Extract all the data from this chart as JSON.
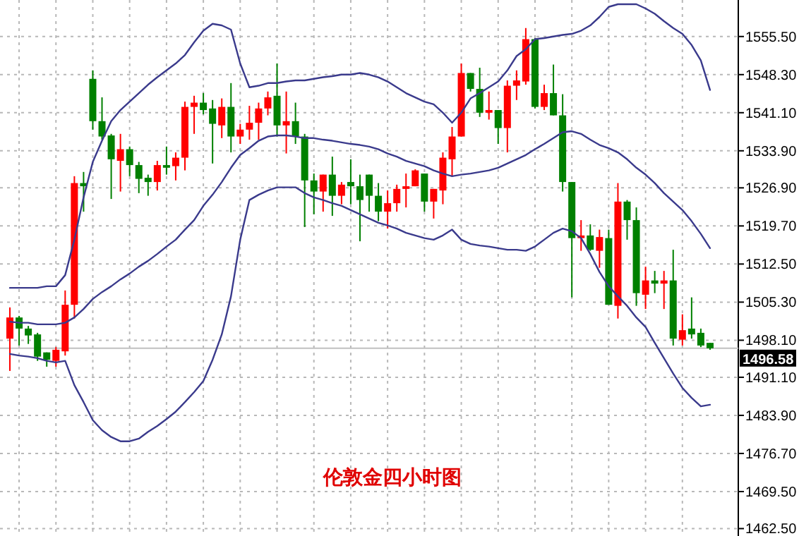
{
  "chart_data": {
    "type": "candlestick",
    "title": "伦敦金四小时图",
    "categories": [
      null,
      null,
      null,
      null,
      null,
      null,
      null,
      null,
      null,
      null,
      null,
      null,
      null,
      null,
      null,
      null,
      null,
      null,
      null,
      null,
      null,
      null,
      null,
      null,
      null,
      null,
      null,
      null,
      null,
      null,
      null,
      null,
      null,
      null,
      null,
      null,
      null,
      null,
      null,
      null,
      null,
      null,
      null,
      null,
      null,
      null,
      null,
      null,
      null,
      null,
      null,
      null,
      null,
      null,
      null,
      null,
      null,
      null,
      null,
      null,
      null,
      null,
      null,
      null,
      null,
      null,
      null,
      null,
      null,
      null,
      null,
      null,
      null,
      null,
      null,
      null,
      null
    ],
    "ohlc": [
      [
        1498.4,
        1504.3,
        1492.3,
        1502.4
      ],
      [
        1502.4,
        1502.7,
        1497.1,
        1500.3
      ],
      [
        1500.3,
        1500.8,
        1497.4,
        1499.0
      ],
      [
        1499.2,
        1499.5,
        1494.2,
        1495.0
      ],
      [
        1495.8,
        1495.8,
        1493.1,
        1494.4
      ],
      [
        1494.2,
        1496.8,
        1493.1,
        1496.3
      ],
      [
        1496.0,
        1507.5,
        1495.2,
        1504.8
      ],
      [
        1504.8,
        1529.1,
        1502.2,
        1527.8
      ],
      [
        1527.8,
        1529.9,
        1522.4,
        1527.2
      ],
      [
        1547.5,
        1549.1,
        1537.9,
        1539.5
      ],
      [
        1539.5,
        1544.0,
        1536.0,
        1536.6
      ],
      [
        1536.8,
        1537.1,
        1524.8,
        1532.3
      ],
      [
        1532.0,
        1537.1,
        1526.2,
        1534.2
      ],
      [
        1534.2,
        1534.7,
        1529.1,
        1531.2
      ],
      [
        1531.2,
        1531.8,
        1525.9,
        1528.6
      ],
      [
        1528.8,
        1529.4,
        1525.4,
        1528.0
      ],
      [
        1528.0,
        1532.0,
        1526.4,
        1531.2
      ],
      [
        1531.2,
        1534.7,
        1529.4,
        1530.7
      ],
      [
        1531.0,
        1533.6,
        1528.3,
        1532.6
      ],
      [
        1532.6,
        1543.2,
        1530.2,
        1542.2
      ],
      [
        1542.2,
        1544.3,
        1537.1,
        1543.0
      ],
      [
        1543.0,
        1544.8,
        1540.8,
        1541.6
      ],
      [
        1541.9,
        1543.5,
        1531.5,
        1539.0
      ],
      [
        1538.7,
        1543.8,
        1536.3,
        1542.2
      ],
      [
        1542.2,
        1546.7,
        1533.6,
        1536.6
      ],
      [
        1536.6,
        1539.0,
        1535.2,
        1537.9
      ],
      [
        1537.9,
        1542.4,
        1536.0,
        1539.2
      ],
      [
        1539.2,
        1543.0,
        1536.0,
        1541.9
      ],
      [
        1541.9,
        1545.1,
        1540.6,
        1544.0
      ],
      [
        1544.3,
        1550.4,
        1536.6,
        1538.7
      ],
      [
        1538.7,
        1545.1,
        1533.4,
        1539.5
      ],
      [
        1539.5,
        1543.0,
        1535.2,
        1536.6
      ],
      [
        1536.6,
        1537.1,
        1519.5,
        1528.3
      ],
      [
        1528.3,
        1529.6,
        1521.9,
        1526.2
      ],
      [
        1526.2,
        1529.4,
        1522.4,
        1529.4
      ],
      [
        1529.4,
        1532.8,
        1521.6,
        1525.4
      ],
      [
        1525.4,
        1528.0,
        1523.8,
        1527.5
      ],
      [
        1528.0,
        1532.3,
        1523.8,
        1527.2
      ],
      [
        1527.2,
        1529.4,
        1516.8,
        1524.6
      ],
      [
        1529.4,
        1529.4,
        1522.4,
        1525.4
      ],
      [
        1525.4,
        1527.8,
        1520.6,
        1522.4
      ],
      [
        1522.4,
        1526.4,
        1519.2,
        1524.0
      ],
      [
        1524.0,
        1527.5,
        1522.4,
        1526.7
      ],
      [
        1526.7,
        1529.6,
        1523.2,
        1527.2
      ],
      [
        1527.2,
        1530.4,
        1527.2,
        1530.2
      ],
      [
        1529.6,
        1529.6,
        1522.4,
        1524.3
      ],
      [
        1524.3,
        1526.7,
        1521.1,
        1526.7
      ],
      [
        1526.4,
        1533.6,
        1523.8,
        1532.6
      ],
      [
        1532.3,
        1538.4,
        1529.1,
        1536.6
      ],
      [
        1536.6,
        1550.4,
        1536.6,
        1548.6
      ],
      [
        1548.6,
        1548.6,
        1545.1,
        1545.6
      ],
      [
        1545.6,
        1549.6,
        1540.3,
        1541.1
      ],
      [
        1541.1,
        1545.1,
        1539.8,
        1541.6
      ],
      [
        1541.6,
        1541.6,
        1535.2,
        1538.2
      ],
      [
        1538.2,
        1547.2,
        1533.6,
        1546.2
      ],
      [
        1546.2,
        1549.1,
        1543.5,
        1547.2
      ],
      [
        1547.0,
        1557.1,
        1546.4,
        1555.0
      ],
      [
        1555.0,
        1555.2,
        1541.9,
        1542.2
      ],
      [
        1542.2,
        1546.4,
        1541.6,
        1544.8
      ],
      [
        1544.8,
        1550.2,
        1540.6,
        1540.6
      ],
      [
        1540.6,
        1544.6,
        1526.2,
        1528.0
      ],
      [
        1528.0,
        1528.0,
        1506.2,
        1517.4
      ],
      [
        1517.4,
        1520.8,
        1515.0,
        1517.9
      ],
      [
        1517.9,
        1520.0,
        1515.0,
        1515.2
      ],
      [
        1515.0,
        1519.0,
        1511.8,
        1517.6
      ],
      [
        1517.4,
        1519.0,
        1504.8,
        1504.8
      ],
      [
        1504.6,
        1527.8,
        1502.2,
        1524.3
      ],
      [
        1524.3,
        1524.6,
        1517.1,
        1520.8
      ],
      [
        1520.8,
        1523.2,
        1504.6,
        1507.0
      ],
      [
        1506.7,
        1512.0,
        1504.0,
        1509.4
      ],
      [
        1509.4,
        1511.2,
        1507.0,
        1508.8
      ],
      [
        1508.8,
        1511.2,
        1504.0,
        1509.4
      ],
      [
        1509.4,
        1515.2,
        1497.1,
        1498.4
      ],
      [
        1498.2,
        1503.0,
        1497.1,
        1500.0
      ],
      [
        1500.3,
        1506.2,
        1498.4,
        1499.2
      ],
      [
        1499.5,
        1500.3,
        1496.8,
        1497.1
      ],
      [
        1497.6,
        1497.6,
        1496.3,
        1496.58
      ]
    ],
    "colors": [
      "#ff0000",
      "#008000",
      "#008000",
      "#008000",
      "#008000",
      "#ff0000",
      "#ff0000",
      "#ff0000",
      "#008000",
      "#008000",
      "#008000",
      "#008000",
      "#ff0000",
      "#008000",
      "#008000",
      "#008000",
      "#ff0000",
      "#008000",
      "#ff0000",
      "#ff0000",
      "#ff0000",
      "#008000",
      "#008000",
      "#ff0000",
      "#008000",
      "#ff0000",
      "#ff0000",
      "#ff0000",
      "#ff0000",
      "#008000",
      "#ff0000",
      "#008000",
      "#008000",
      "#008000",
      "#ff0000",
      "#008000",
      "#ff0000",
      "#008000",
      "#008000",
      "#008000",
      "#008000",
      "#ff0000",
      "#ff0000",
      "#ff0000",
      "#ff0000",
      "#008000",
      "#ff0000",
      "#ff0000",
      "#ff0000",
      "#ff0000",
      "#008000",
      "#008000",
      "#ff0000",
      "#008000",
      "#ff0000",
      "#ff0000",
      "#ff0000",
      "#008000",
      "#ff0000",
      "#008000",
      "#008000",
      "#008000",
      "#ff0000",
      "#008000",
      "#ff0000",
      "#008000",
      "#ff0000",
      "#008000",
      "#008000",
      "#ff0000",
      "#008000",
      "#ff0000",
      "#008000",
      "#ff0000",
      "#008000",
      "#008000",
      "#008000"
    ],
    "series": [
      {
        "type": "line",
        "color": "#3a3a8c",
        "values": [
          1508.0,
          1508.0,
          1508.0,
          1508.0,
          1508.3,
          1508.3,
          1510.4,
          1517.1,
          1525.1,
          1531.8,
          1535.8,
          1539.5,
          1541.6,
          1543.2,
          1544.8,
          1546.4,
          1547.8,
          1549.1,
          1550.4,
          1552.0,
          1554.4,
          1556.6,
          1557.9,
          1557.6,
          1556.8,
          1550.4,
          1545.9,
          1546.2,
          1546.7,
          1546.7,
          1547.0,
          1547.2,
          1547.2,
          1547.5,
          1547.8,
          1548.0,
          1548.3,
          1548.3,
          1548.6,
          1548.3,
          1547.8,
          1547.0,
          1545.9,
          1544.8,
          1544.0,
          1543.2,
          1542.7,
          1541.1,
          1539.2,
          1541.1,
          1543.8,
          1544.8,
          1545.9,
          1547.0,
          1549.1,
          1551.8,
          1553.1,
          1555.0,
          1555.2,
          1555.5,
          1555.8,
          1556.0,
          1556.6,
          1557.6,
          1559.2,
          1561.1,
          1561.6,
          1561.6,
          1561.6,
          1560.8,
          1559.8,
          1558.4,
          1557.1,
          1556.0,
          1553.9,
          1551.0,
          1545.4
        ]
      },
      {
        "type": "line",
        "color": "#3a3a8c",
        "values": [
          1501.6,
          1501.4,
          1501.4,
          1501.1,
          1501.1,
          1501.1,
          1501.4,
          1502.4,
          1504.0,
          1505.9,
          1507.2,
          1508.3,
          1509.6,
          1510.7,
          1512.0,
          1513.1,
          1514.4,
          1515.8,
          1517.1,
          1519.0,
          1520.8,
          1523.5,
          1525.6,
          1528.0,
          1530.7,
          1533.1,
          1534.4,
          1535.8,
          1536.6,
          1536.8,
          1536.8,
          1536.6,
          1536.3,
          1536.3,
          1536.0,
          1535.8,
          1535.5,
          1535.2,
          1535.0,
          1534.7,
          1534.2,
          1533.4,
          1532.8,
          1532.0,
          1531.5,
          1531.0,
          1530.2,
          1529.6,
          1529.1,
          1529.4,
          1529.6,
          1529.9,
          1530.2,
          1530.7,
          1531.5,
          1532.3,
          1533.1,
          1534.2,
          1535.2,
          1536.3,
          1537.4,
          1537.6,
          1537.1,
          1536.0,
          1535.0,
          1534.4,
          1533.6,
          1532.3,
          1530.7,
          1529.4,
          1527.8,
          1525.9,
          1524.3,
          1522.7,
          1520.6,
          1518.2,
          1515.5
        ]
      },
      {
        "type": "line",
        "color": "#3a3a8c",
        "values": [
          1495.5,
          1495.2,
          1495.0,
          1494.7,
          1494.2,
          1493.9,
          1494.2,
          1489.6,
          1486.4,
          1483.0,
          1481.1,
          1479.8,
          1479.0,
          1479.0,
          1479.5,
          1480.8,
          1481.9,
          1483.2,
          1484.6,
          1486.4,
          1488.3,
          1490.4,
          1494.4,
          1499.2,
          1506.4,
          1517.1,
          1524.6,
          1525.6,
          1526.4,
          1527.0,
          1527.0,
          1527.0,
          1525.9,
          1525.1,
          1524.6,
          1524.0,
          1523.5,
          1522.7,
          1521.9,
          1521.1,
          1520.3,
          1519.8,
          1519.2,
          1518.4,
          1517.9,
          1517.4,
          1517.1,
          1517.9,
          1519.0,
          1517.1,
          1516.3,
          1516.0,
          1515.8,
          1515.5,
          1515.2,
          1515.2,
          1515.0,
          1515.8,
          1517.1,
          1518.4,
          1519.2,
          1518.7,
          1517.4,
          1514.4,
          1511.0,
          1508.3,
          1506.4,
          1504.6,
          1502.4,
          1500.6,
          1497.6,
          1494.7,
          1491.8,
          1489.1,
          1487.2,
          1485.6,
          1485.9
        ]
      }
    ],
    "ylim": [
      1461.1,
      1562.4
    ],
    "yticks": [
      {
        "value": 1555.5,
        "label": "1555.50"
      },
      {
        "value": 1548.3,
        "label": "1548.30"
      },
      {
        "value": 1541.1,
        "label": "1541.10"
      },
      {
        "value": 1533.9,
        "label": "1533.90"
      },
      {
        "value": 1526.9,
        "label": "1526.90"
      },
      {
        "value": 1519.7,
        "label": "1519.70"
      },
      {
        "value": 1512.5,
        "label": "1512.50"
      },
      {
        "value": 1505.3,
        "label": "1505.30"
      },
      {
        "value": 1498.1,
        "label": "1498.10"
      },
      {
        "value": 1491.1,
        "label": "1491.10"
      },
      {
        "value": 1483.9,
        "label": "1483.90"
      },
      {
        "value": 1476.7,
        "label": "1476.70"
      },
      {
        "value": 1469.5,
        "label": "1469.50"
      },
      {
        "value": 1462.5,
        "label": "1462.50"
      }
    ],
    "ref_lines": [
      {
        "axis": "y",
        "value": 1496.58,
        "label": "1496.58",
        "color": "#c0c0c0"
      }
    ],
    "grid": true
  }
}
